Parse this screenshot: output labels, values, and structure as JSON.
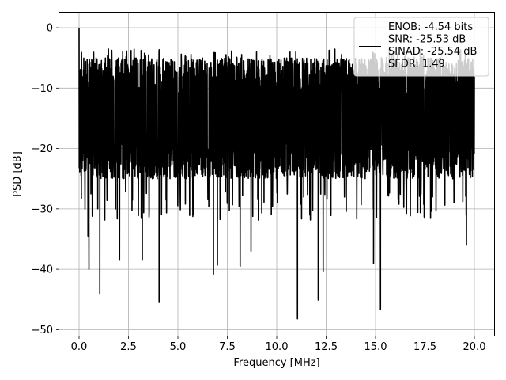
{
  "chart_data": {
    "type": "line",
    "title": "",
    "xlabel": "Frequency [MHz]",
    "ylabel": "PSD [dB]",
    "xlim": [
      -1.0,
      21.0
    ],
    "ylim": [
      -51.0,
      2.5
    ],
    "xticks": [
      0.0,
      2.5,
      5.0,
      7.5,
      10.0,
      12.5,
      15.0,
      17.5,
      20.0
    ],
    "xtick_labels": [
      "0.0",
      "2.5",
      "5.0",
      "7.5",
      "10.0",
      "12.5",
      "15.0",
      "17.5",
      "20.0"
    ],
    "yticks": [
      0,
      -10,
      -20,
      -30,
      -40,
      -50
    ],
    "ytick_labels": [
      "0",
      "−10",
      "−20",
      "−30",
      "−40",
      "−50"
    ],
    "grid": true,
    "legend_position": "top-right",
    "legend_lines": [
      "ENOB: -4.54 bits",
      "SNR: -25.53 dB",
      "SINAD: -25.54 dB",
      "SFDR: 1.49"
    ],
    "line_color": "#000000",
    "series": [
      {
        "description": "noise-like PSD trace",
        "x_range": [
          0.0,
          20.0
        ],
        "start_value": 0.0,
        "typical_band": [
          -25,
          -5
        ],
        "max_top": -3.5,
        "notable_dips": [
          {
            "x": 0.45,
            "y": -34.5
          },
          {
            "x": 0.5,
            "y": -40.0
          },
          {
            "x": 1.05,
            "y": -44.0
          },
          {
            "x": 2.05,
            "y": -38.5
          },
          {
            "x": 3.2,
            "y": -38.5
          },
          {
            "x": 4.05,
            "y": -45.5
          },
          {
            "x": 6.8,
            "y": -40.8
          },
          {
            "x": 7.0,
            "y": -39.3
          },
          {
            "x": 8.15,
            "y": -39.5
          },
          {
            "x": 8.7,
            "y": -37.0
          },
          {
            "x": 11.05,
            "y": -48.2
          },
          {
            "x": 12.1,
            "y": -45.1
          },
          {
            "x": 12.35,
            "y": -40.3
          },
          {
            "x": 14.9,
            "y": -39.0
          },
          {
            "x": 15.25,
            "y": -46.6
          },
          {
            "x": 19.6,
            "y": -36.0
          }
        ]
      }
    ]
  }
}
